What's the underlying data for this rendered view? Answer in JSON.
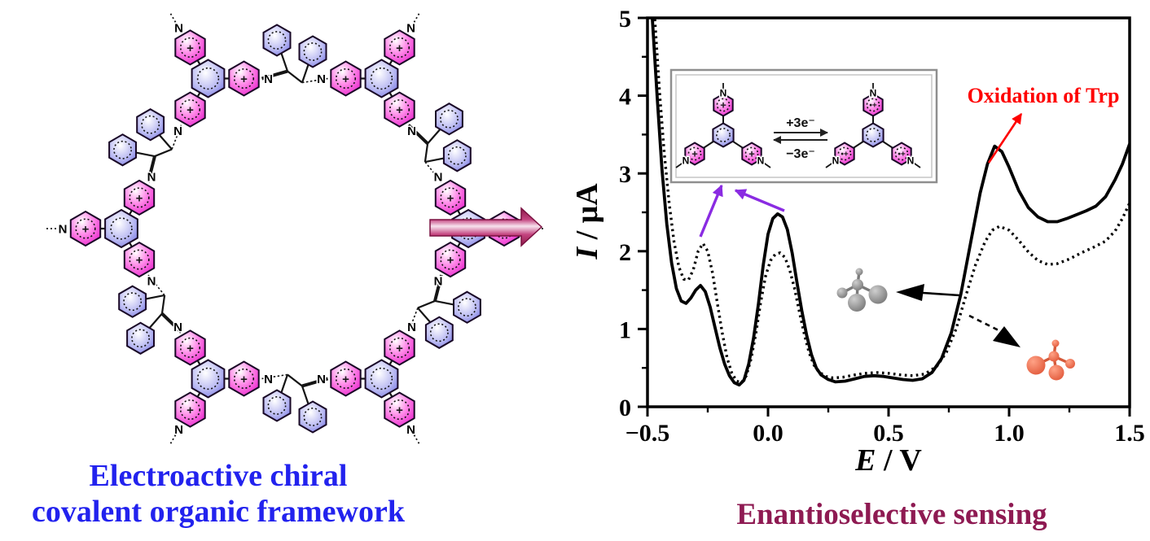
{
  "figure": {
    "left_panel": {
      "caption_line1": "Electroactive chiral",
      "caption_line2": "covalent organic framework",
      "caption_color": "#2222ee",
      "atom_label": "N",
      "charge_label": "+"
    },
    "transformation_arrow": {
      "color_dark": "#8c1747",
      "color_light": "#f7e3ee"
    },
    "inset": {
      "forward_label": "+3e⁻",
      "reverse_label": "−3e⁻",
      "atom_label": "N",
      "charge_oxidized": "+",
      "charge_reduced": "•+",
      "border_color": "#8f8f8f"
    },
    "annotations": {
      "oxidation_label": "Oxidation of Trp",
      "oxidation_color": "#fe0000",
      "purple_arrow_color": "#8a2be2",
      "gray_molecule_color": "#7a7a7a",
      "red_molecule_color": "#e05538"
    },
    "right_caption": {
      "text": "Enantioselective sensing",
      "color": "#8e1a52"
    }
  },
  "chart_data": {
    "type": "line",
    "title": "",
    "xlabel_symbol": "E",
    "xlabel_units": " / V",
    "ylabel_symbol": "I",
    "ylabel_units": " / μA",
    "xlim": [
      -0.5,
      1.5
    ],
    "ylim": [
      0,
      5
    ],
    "grid": false,
    "x_tick_values": [
      -0.5,
      0.0,
      0.5,
      1.0,
      1.5
    ],
    "x_tick_labels": [
      "−0.5",
      "0.0",
      "0.5",
      "1.0",
      "1.5"
    ],
    "x_minor_tick_values": [
      -0.25,
      0.25,
      0.75,
      1.25
    ],
    "y_tick_values": [
      0,
      1,
      2,
      3,
      4,
      5
    ],
    "y_tick_labels": [
      "0",
      "1",
      "2",
      "3",
      "4",
      "5"
    ],
    "y_minor_tick_values": [
      0.5,
      1.5,
      2.5,
      3.5,
      4.5
    ],
    "annotated_peak": {
      "label": "Oxidation of Trp",
      "E_V": 0.95,
      "I_uA": 3.35
    },
    "series": [
      {
        "name": "solid_curve",
        "style": "solid",
        "points": [
          [
            -0.5,
            6.3
          ],
          [
            -0.48,
            5.0
          ],
          [
            -0.46,
            4.0
          ],
          [
            -0.44,
            3.05
          ],
          [
            -0.42,
            2.35
          ],
          [
            -0.4,
            1.85
          ],
          [
            -0.38,
            1.52
          ],
          [
            -0.36,
            1.36
          ],
          [
            -0.34,
            1.33
          ],
          [
            -0.32,
            1.4
          ],
          [
            -0.3,
            1.5
          ],
          [
            -0.28,
            1.56
          ],
          [
            -0.26,
            1.48
          ],
          [
            -0.24,
            1.28
          ],
          [
            -0.22,
            1.02
          ],
          [
            -0.2,
            0.76
          ],
          [
            -0.18,
            0.55
          ],
          [
            -0.16,
            0.4
          ],
          [
            -0.14,
            0.31
          ],
          [
            -0.12,
            0.28
          ],
          [
            -0.1,
            0.34
          ],
          [
            -0.08,
            0.55
          ],
          [
            -0.06,
            0.88
          ],
          [
            -0.04,
            1.32
          ],
          [
            -0.02,
            1.82
          ],
          [
            0.0,
            2.22
          ],
          [
            0.02,
            2.42
          ],
          [
            0.04,
            2.48
          ],
          [
            0.06,
            2.44
          ],
          [
            0.08,
            2.28
          ],
          [
            0.1,
            1.98
          ],
          [
            0.12,
            1.6
          ],
          [
            0.14,
            1.24
          ],
          [
            0.16,
            0.92
          ],
          [
            0.18,
            0.67
          ],
          [
            0.2,
            0.5
          ],
          [
            0.22,
            0.41
          ],
          [
            0.25,
            0.35
          ],
          [
            0.28,
            0.32
          ],
          [
            0.32,
            0.33
          ],
          [
            0.36,
            0.36
          ],
          [
            0.4,
            0.39
          ],
          [
            0.44,
            0.4
          ],
          [
            0.48,
            0.39
          ],
          [
            0.52,
            0.37
          ],
          [
            0.56,
            0.35
          ],
          [
            0.6,
            0.34
          ],
          [
            0.64,
            0.36
          ],
          [
            0.68,
            0.44
          ],
          [
            0.72,
            0.62
          ],
          [
            0.76,
            0.95
          ],
          [
            0.8,
            1.45
          ],
          [
            0.84,
            2.1
          ],
          [
            0.88,
            2.75
          ],
          [
            0.91,
            3.12
          ],
          [
            0.94,
            3.35
          ],
          [
            0.97,
            3.28
          ],
          [
            1.0,
            3.08
          ],
          [
            1.04,
            2.78
          ],
          [
            1.08,
            2.56
          ],
          [
            1.12,
            2.44
          ],
          [
            1.16,
            2.38
          ],
          [
            1.2,
            2.38
          ],
          [
            1.24,
            2.42
          ],
          [
            1.28,
            2.47
          ],
          [
            1.32,
            2.52
          ],
          [
            1.36,
            2.58
          ],
          [
            1.4,
            2.7
          ],
          [
            1.44,
            2.92
          ],
          [
            1.47,
            3.12
          ],
          [
            1.5,
            3.38
          ]
        ]
      },
      {
        "name": "dotted_curve",
        "style": "dotted",
        "points": [
          [
            -0.49,
            6.3
          ],
          [
            -0.47,
            5.0
          ],
          [
            -0.45,
            4.05
          ],
          [
            -0.43,
            3.25
          ],
          [
            -0.41,
            2.62
          ],
          [
            -0.39,
            2.12
          ],
          [
            -0.37,
            1.8
          ],
          [
            -0.35,
            1.64
          ],
          [
            -0.33,
            1.63
          ],
          [
            -0.31,
            1.76
          ],
          [
            -0.29,
            2.0
          ],
          [
            -0.27,
            2.1
          ],
          [
            -0.25,
            2.0
          ],
          [
            -0.23,
            1.72
          ],
          [
            -0.21,
            1.33
          ],
          [
            -0.19,
            0.95
          ],
          [
            -0.17,
            0.63
          ],
          [
            -0.15,
            0.43
          ],
          [
            -0.13,
            0.33
          ],
          [
            -0.11,
            0.31
          ],
          [
            -0.09,
            0.4
          ],
          [
            -0.07,
            0.62
          ],
          [
            -0.05,
            0.95
          ],
          [
            -0.03,
            1.35
          ],
          [
            -0.01,
            1.68
          ],
          [
            0.01,
            1.88
          ],
          [
            0.03,
            1.96
          ],
          [
            0.05,
            1.98
          ],
          [
            0.07,
            1.92
          ],
          [
            0.09,
            1.76
          ],
          [
            0.11,
            1.52
          ],
          [
            0.13,
            1.22
          ],
          [
            0.15,
            0.94
          ],
          [
            0.17,
            0.7
          ],
          [
            0.19,
            0.54
          ],
          [
            0.21,
            0.45
          ],
          [
            0.24,
            0.39
          ],
          [
            0.27,
            0.37
          ],
          [
            0.31,
            0.38
          ],
          [
            0.36,
            0.41
          ],
          [
            0.4,
            0.43
          ],
          [
            0.45,
            0.44
          ],
          [
            0.5,
            0.43
          ],
          [
            0.55,
            0.41
          ],
          [
            0.6,
            0.4
          ],
          [
            0.65,
            0.42
          ],
          [
            0.7,
            0.52
          ],
          [
            0.74,
            0.7
          ],
          [
            0.78,
            1.0
          ],
          [
            0.82,
            1.42
          ],
          [
            0.86,
            1.82
          ],
          [
            0.9,
            2.12
          ],
          [
            0.93,
            2.27
          ],
          [
            0.96,
            2.32
          ],
          [
            1.0,
            2.27
          ],
          [
            1.04,
            2.14
          ],
          [
            1.08,
            1.99
          ],
          [
            1.12,
            1.88
          ],
          [
            1.16,
            1.83
          ],
          [
            1.2,
            1.84
          ],
          [
            1.25,
            1.9
          ],
          [
            1.3,
            1.98
          ],
          [
            1.35,
            2.05
          ],
          [
            1.4,
            2.13
          ],
          [
            1.44,
            2.26
          ],
          [
            1.47,
            2.42
          ],
          [
            1.5,
            2.62
          ]
        ]
      }
    ]
  }
}
